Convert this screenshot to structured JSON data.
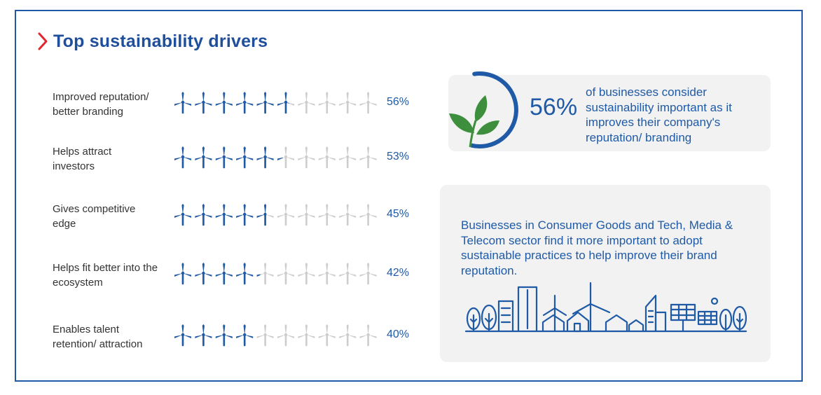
{
  "title": "Top sustainability drivers",
  "colors": {
    "accent": "#1f5aa6",
    "chevron": "#e0262e",
    "inactive": "#cdcdcd",
    "leaf": "#3d8f3d"
  },
  "icons": {
    "title": "chevron-right-icon",
    "marker": "wind-turbine-icon",
    "stat": "sprout-icon",
    "city": "city-skyline-icon"
  },
  "chart_data": {
    "type": "bar",
    "title": "Top sustainability drivers",
    "units_per_chart": 10,
    "categories": [
      "Improved reputation/ better branding",
      "Helps attract investors",
      "Gives competitive edge",
      "Helps fit better into the ecosystem",
      "Enables talent retention/ attraction"
    ],
    "label_lines": [
      [
        "Improved reputation/",
        "better branding"
      ],
      [
        "Helps attract",
        "investors"
      ],
      [
        "Gives competitive",
        "edge"
      ],
      [
        "Helps fit better into the",
        "ecosystem"
      ],
      [
        "Enables talent",
        "retention/ attraction"
      ]
    ],
    "values": [
      56,
      53,
      45,
      42,
      40
    ],
    "value_labels": [
      "56%",
      "53%",
      "45%",
      "42%",
      "40%"
    ],
    "ylim": [
      0,
      100
    ]
  },
  "stat_card": {
    "value": "56%",
    "text": "of businesses consider sustainability important as it improves their company's reputation/ branding"
  },
  "info_card": {
    "text": "Businesses in Consumer Goods and Tech, Media & Telecom sector find it more important to adopt sustainable practices to help improve their brand reputation."
  }
}
